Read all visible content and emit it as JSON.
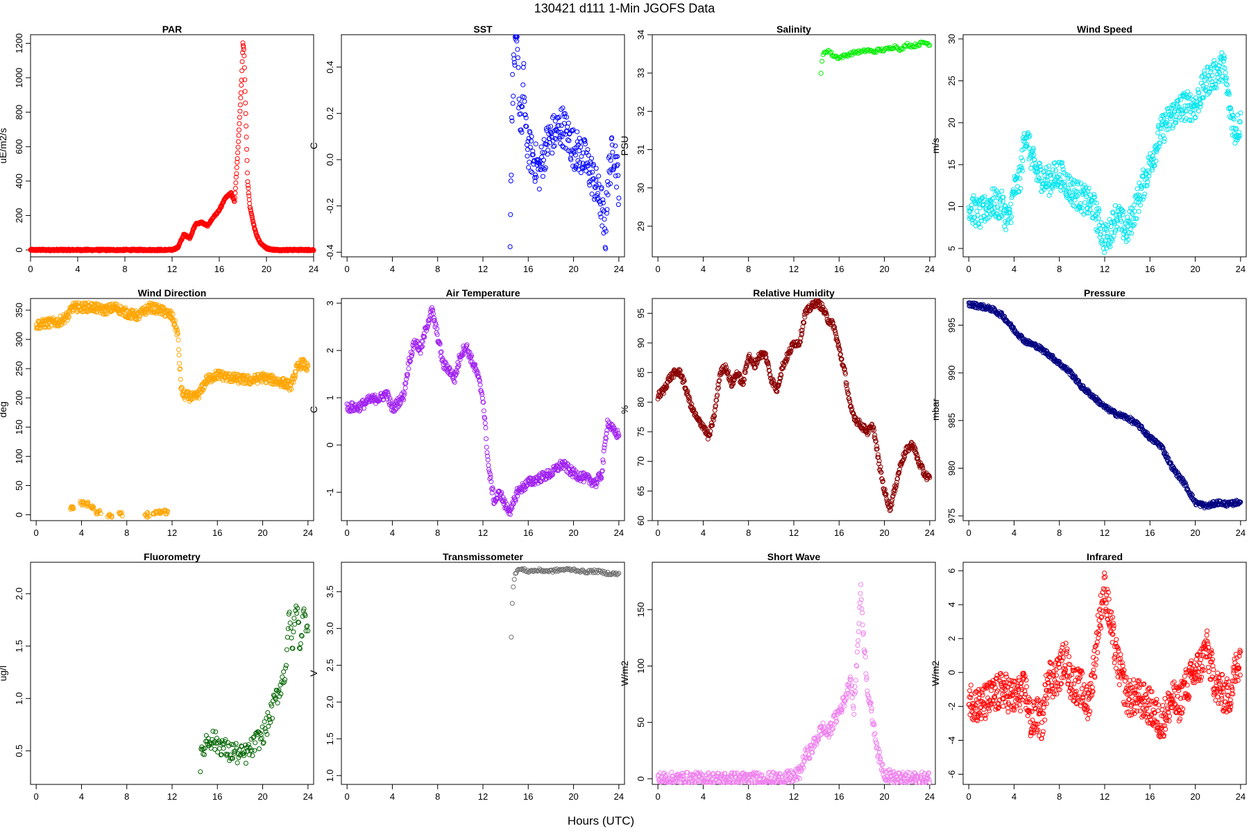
{
  "figure": {
    "title": "130421    d111    1-Min   JGOFS Data",
    "xlabel": "Hours (UTC)"
  },
  "chart_data": [
    {
      "type": "scatter",
      "title": "PAR",
      "ylabel": "uE/m2/s",
      "color": "#ff0000",
      "xlim": [
        0,
        24
      ],
      "ylim": [
        -40,
        1250
      ],
      "xticks": [
        0,
        4,
        8,
        12,
        16,
        20,
        24
      ],
      "yticks": [
        0,
        200,
        400,
        600,
        800,
        1000,
        1200
      ],
      "yticklabels": [
        "0",
        "200",
        "400",
        "600",
        "800",
        "1000",
        "1200"
      ],
      "x": [
        0,
        4,
        8,
        12,
        12.5,
        13,
        13.5,
        14,
        14.5,
        15,
        15.5,
        16,
        16.5,
        17,
        17.3,
        17.6,
        17.9,
        18,
        18.1,
        18.2,
        18.4,
        18.6,
        18.9,
        19.2,
        19.5,
        20,
        20.5,
        21,
        22,
        23,
        24
      ],
      "y": [
        0,
        0,
        0,
        0,
        15,
        90,
        70,
        150,
        160,
        140,
        190,
        230,
        300,
        330,
        280,
        600,
        1000,
        1200,
        1150,
        900,
        400,
        250,
        150,
        80,
        40,
        10,
        2,
        0,
        0,
        0,
        0
      ],
      "scatter": [
        5,
        12
      ]
    },
    {
      "type": "scatter",
      "title": "SST",
      "ylabel": "C",
      "color": "#0000ff",
      "xlim": [
        -0.5,
        24.5
      ],
      "ylim": [
        -0.42,
        0.54
      ],
      "xticks": [
        0,
        4,
        8,
        12,
        16,
        20,
        24
      ],
      "yticks": [
        -0.4,
        -0.2,
        0,
        0.2,
        0.4
      ],
      "yticklabels": [
        "-0.4",
        "-0.2",
        "0.0",
        "0.2",
        "0.4"
      ],
      "x": [
        14.4,
        14.6,
        14.8,
        15,
        15.2,
        15.4,
        15.6,
        15.8,
        16,
        16.5,
        17,
        17.5,
        18,
        18.5,
        19,
        19.5,
        20,
        20.5,
        21,
        21.5,
        22,
        22.5,
        22.8,
        23,
        23.3,
        23.6,
        24
      ],
      "y": [
        -0.3,
        0.3,
        0.45,
        0.5,
        0.25,
        0.15,
        0.35,
        0.1,
        0.05,
        0,
        -0.05,
        0.05,
        0.1,
        0.12,
        0.15,
        0.1,
        0.05,
        0.03,
        0,
        -0.05,
        -0.12,
        -0.2,
        -0.35,
        -0.1,
        0.0,
        0.05,
        -0.12
      ],
      "scatter": [
        0.09,
        9
      ]
    },
    {
      "type": "scatter",
      "title": "Salinity",
      "ylabel": "PSU",
      "color": "#00ee00",
      "xlim": [
        -0.5,
        24.5
      ],
      "ylim": [
        28.2,
        34.0
      ],
      "xticks": [
        0,
        4,
        8,
        12,
        16,
        20,
        24
      ],
      "yticks": [
        29,
        30,
        31,
        32,
        33,
        34
      ],
      "yticklabels": [
        "29",
        "30",
        "31",
        "32",
        "33",
        "34"
      ],
      "x": [
        14.4,
        14.5,
        14.6,
        14.8,
        15,
        15.5,
        16,
        16.5,
        17,
        17.5,
        18,
        18.5,
        19,
        19.5,
        20,
        20.5,
        21,
        21.5,
        22,
        22.5,
        23,
        23.5,
        24
      ],
      "y": [
        33,
        33.3,
        33.5,
        33.55,
        33.6,
        33.45,
        33.4,
        33.45,
        33.5,
        33.55,
        33.55,
        33.6,
        33.55,
        33.6,
        33.6,
        33.65,
        33.7,
        33.6,
        33.75,
        33.7,
        33.75,
        33.8,
        33.75
      ],
      "scatter": [
        0.04,
        3
      ]
    },
    {
      "type": "scatter",
      "title": "Wind Speed",
      "ylabel": "m/s",
      "color": "#00e5ee",
      "xlim": [
        -0.5,
        24.5
      ],
      "ylim": [
        4,
        30.5
      ],
      "xticks": [
        0,
        4,
        8,
        12,
        16,
        20,
        24
      ],
      "yticks": [
        5,
        10,
        15,
        20,
        25,
        30
      ],
      "yticklabels": [
        "5",
        "10",
        "15",
        "20",
        "25",
        "30"
      ],
      "x": [
        0,
        1,
        2,
        3,
        3.5,
        4,
        4.5,
        5,
        5.5,
        6,
        7,
        8,
        9,
        10,
        11,
        12,
        12.5,
        13,
        14,
        15,
        16,
        16.5,
        17,
        18,
        19,
        20,
        21,
        22,
        22.5,
        23,
        23.5,
        24
      ],
      "y": [
        10,
        9,
        10.5,
        10,
        8,
        12,
        13,
        19,
        16,
        14,
        13,
        14,
        12,
        11,
        10,
        6,
        7,
        9,
        7,
        11,
        15,
        17,
        19,
        21,
        22,
        22,
        25,
        26,
        27,
        22,
        19,
        20
      ],
      "scatter": [
        1.8,
        10
      ]
    },
    {
      "type": "scatter",
      "title": "Wind Direction",
      "ylabel": "deg",
      "color": "#ffa500",
      "xlim": [
        -0.5,
        24.5
      ],
      "ylim": [
        -10,
        370
      ],
      "xticks": [
        0,
        4,
        8,
        12,
        16,
        20,
        24
      ],
      "yticks": [
        0,
        50,
        100,
        150,
        200,
        250,
        300,
        350
      ],
      "yticklabels": [
        "0",
        "50",
        "100",
        "150",
        "200",
        "250",
        "300",
        "350"
      ],
      "x": [
        0,
        1,
        2,
        2.8,
        3.2,
        5,
        6,
        7,
        8,
        9,
        10,
        11,
        12,
        12.5,
        12.8,
        13,
        14,
        14.5,
        15,
        16,
        17,
        18,
        19,
        20,
        21,
        22,
        22.5,
        23,
        23.5,
        24
      ],
      "y": [
        325,
        328,
        330,
        340,
        355,
        355,
        350,
        355,
        345,
        340,
        355,
        350,
        340,
        310,
        215,
        205,
        200,
        210,
        230,
        240,
        235,
        232,
        230,
        235,
        230,
        225,
        220,
        250,
        260,
        250
      ],
      "scatter": [
        8,
        10
      ],
      "extra": [
        [
          3.2,
          10,
          4.0,
          20,
          4.5,
          18,
          5,
          12,
          5.5,
          5,
          6.5,
          0,
          7.5,
          2,
          9.8,
          0,
          10.5,
          2,
          11,
          3,
          11.5,
          5
        ],
        8,
        4
      ]
    },
    {
      "type": "scatter",
      "title": "Air Temperature",
      "ylabel": "C",
      "color": "#a020f0",
      "xlim": [
        -0.5,
        24.5
      ],
      "ylim": [
        -1.6,
        3.1
      ],
      "xticks": [
        0,
        4,
        8,
        12,
        16,
        20,
        24
      ],
      "yticks": [
        -1,
        0,
        1,
        2,
        3
      ],
      "yticklabels": [
        "-1",
        "0",
        "1",
        "2",
        "3"
      ],
      "x": [
        0,
        1,
        2,
        3,
        3.5,
        4,
        4.5,
        5,
        5.5,
        6,
        6.5,
        7,
        7.5,
        8,
        8.5,
        9,
        9.5,
        10,
        10.5,
        11,
        11.5,
        12,
        12.5,
        13,
        13.5,
        14,
        14.5,
        15,
        16,
        17,
        18,
        19,
        20,
        21,
        22,
        22.5,
        23,
        23.5,
        24
      ],
      "y": [
        0.8,
        0.8,
        0.95,
        1.0,
        1.1,
        0.75,
        0.9,
        1.05,
        1.8,
        2.2,
        2.0,
        2.5,
        2.85,
        2.3,
        1.7,
        1.6,
        1.4,
        1.9,
        2.1,
        1.8,
        1.5,
        1.0,
        -0.5,
        -1.2,
        -1.0,
        -1.3,
        -1.4,
        -1.0,
        -0.8,
        -0.7,
        -0.6,
        -0.4,
        -0.6,
        -0.7,
        -0.8,
        -0.6,
        0.5,
        0.3,
        0.2
      ],
      "scatter": [
        0.1,
        8
      ]
    },
    {
      "type": "scatter",
      "title": "Relative Humidity",
      "ylabel": "%",
      "color": "#8b0000",
      "xlim": [
        -0.5,
        24.5
      ],
      "ylim": [
        60,
        97.5
      ],
      "xticks": [
        0,
        4,
        8,
        12,
        16,
        20,
        24
      ],
      "yticks": [
        60,
        65,
        70,
        75,
        80,
        85,
        90,
        95
      ],
      "yticklabels": [
        "60",
        "65",
        "70",
        "75",
        "80",
        "85",
        "90",
        "95"
      ],
      "x": [
        0,
        0.5,
        1,
        1.5,
        2,
        2.5,
        3,
        3.5,
        4,
        4.5,
        5,
        5.5,
        6,
        6.5,
        7,
        7.5,
        8,
        8.5,
        9,
        9.5,
        10,
        10.5,
        11,
        11.5,
        12,
        12.5,
        13,
        13.5,
        14,
        14.5,
        15,
        15.5,
        16,
        16.5,
        17,
        17.5,
        18,
        18.5,
        19,
        19.5,
        20,
        20.5,
        21,
        21.5,
        22,
        22.5,
        23,
        23.5,
        24
      ],
      "y": [
        81,
        82,
        84,
        85,
        85,
        82,
        79,
        77,
        76,
        74,
        78,
        85,
        86,
        83,
        85,
        83,
        88,
        86,
        88,
        88,
        84,
        82,
        86,
        88,
        90,
        90,
        95,
        96,
        97,
        96,
        94,
        93,
        89,
        85,
        79,
        77,
        76,
        75,
        76,
        70,
        65,
        62,
        66,
        70,
        72,
        73,
        70,
        68,
        67
      ],
      "scatter": [
        0.6,
        9
      ]
    },
    {
      "type": "scatter",
      "title": "Pressure",
      "ylabel": "mbar",
      "color": "#000080",
      "xlim": [
        -0.5,
        24.5
      ],
      "ylim": [
        974.5,
        997.8
      ],
      "xticks": [
        0,
        4,
        8,
        12,
        16,
        20,
        24
      ],
      "yticks": [
        975,
        980,
        985,
        990,
        995
      ],
      "yticklabels": [
        "975",
        "980",
        "985",
        "990",
        "995"
      ],
      "x": [
        0,
        1,
        2,
        3,
        4,
        5,
        6,
        7,
        8,
        9,
        10,
        11,
        12,
        13,
        14,
        15,
        16,
        17,
        18,
        19,
        20,
        21,
        22,
        23,
        24
      ],
      "y": [
        997.2,
        997,
        996.7,
        996,
        994.5,
        993.3,
        992.8,
        992,
        991,
        990,
        988.5,
        987.5,
        986.4,
        985.7,
        985.3,
        984.5,
        983.2,
        982.3,
        980,
        978.5,
        976.4,
        976,
        976.4,
        976.2,
        976.5
      ],
      "scatter": [
        0.25,
        8
      ]
    },
    {
      "type": "scatter",
      "title": "Fluorometry",
      "ylabel": "ug/l",
      "color": "#006400",
      "xlim": [
        -0.5,
        24.5
      ],
      "ylim": [
        0.18,
        2.3
      ],
      "xticks": [
        0,
        4,
        8,
        12,
        16,
        20,
        24
      ],
      "yticks": [
        0.5,
        1.0,
        1.5,
        2.0
      ],
      "yticklabels": [
        "0.5",
        "1.0",
        "1.5",
        "2.0"
      ],
      "x": [
        14.5,
        15,
        15.5,
        16,
        16.5,
        17,
        17.5,
        18,
        18.5,
        19,
        19.5,
        20,
        20.5,
        21,
        21.5,
        22,
        22.3,
        22.6,
        23,
        23.3,
        23.6,
        24
      ],
      "y": [
        0.4,
        0.6,
        0.62,
        0.57,
        0.55,
        0.48,
        0.5,
        0.45,
        0.47,
        0.52,
        0.6,
        0.65,
        0.78,
        0.95,
        1.1,
        1.25,
        1.8,
        1.5,
        1.9,
        1.5,
        1.8,
        1.7
      ],
      "scatter": [
        0.1,
        5
      ]
    },
    {
      "type": "scatter",
      "title": "Transmissometer",
      "ylabel": "V",
      "color": "#707070",
      "xlim": [
        -0.5,
        24.5
      ],
      "ylim": [
        0.88,
        3.9
      ],
      "xticks": [
        0,
        4,
        8,
        12,
        16,
        20,
        24
      ],
      "yticks": [
        1.0,
        1.5,
        2.0,
        2.5,
        3.0,
        3.5
      ],
      "yticklabels": [
        "1.0",
        "1.5",
        "2.0",
        "2.5",
        "3.0",
        "3.5"
      ],
      "x": [
        14.5,
        14.6,
        14.7,
        14.8,
        15,
        15.5,
        16,
        17,
        18,
        19,
        20,
        21,
        22,
        23,
        24
      ],
      "y": [
        2.9,
        3.4,
        3.6,
        3.7,
        3.8,
        3.8,
        3.78,
        3.79,
        3.78,
        3.8,
        3.8,
        3.77,
        3.78,
        3.75,
        3.74
      ],
      "scatter": [
        0.02,
        3
      ]
    },
    {
      "type": "scatter",
      "title": "Short Wave",
      "ylabel": "W/m2",
      "color": "#ee82ee",
      "xlim": [
        -0.5,
        24.5
      ],
      "ylim": [
        -5,
        192
      ],
      "xticks": [
        0,
        4,
        8,
        12,
        16,
        20,
        24
      ],
      "yticks": [
        0,
        50,
        100,
        150
      ],
      "yticklabels": [
        "0",
        "50",
        "100",
        "150"
      ],
      "x": [
        0,
        4,
        8,
        11,
        12,
        12.5,
        13,
        13.5,
        14,
        14.5,
        15,
        15.5,
        16,
        16.5,
        17,
        17.3,
        17.6,
        17.9,
        18.2,
        18.5,
        19,
        19.5,
        20,
        21,
        22,
        23,
        24
      ],
      "y": [
        0,
        0,
        0,
        0,
        2,
        5,
        20,
        25,
        35,
        45,
        40,
        50,
        60,
        70,
        90,
        60,
        110,
        170,
        120,
        80,
        50,
        20,
        5,
        0,
        0,
        0,
        0
      ],
      "scatter": [
        6,
        8
      ]
    },
    {
      "type": "scatter",
      "title": "Infrared",
      "ylabel": "W/m2",
      "color": "#ff0000",
      "xlim": [
        -0.5,
        24.5
      ],
      "ylim": [
        -6.6,
        6.5
      ],
      "xticks": [
        0,
        4,
        8,
        12,
        16,
        20,
        24
      ],
      "yticks": [
        -6,
        -4,
        -2,
        0,
        2,
        4,
        6
      ],
      "yticklabels": [
        "-6",
        "-4",
        "-2",
        "0",
        "2",
        "4",
        "6"
      ],
      "x": [
        0,
        1,
        2,
        3,
        4,
        5,
        5.5,
        6,
        6.5,
        7,
        7.5,
        8,
        8.5,
        9,
        10,
        10.5,
        11,
        11.5,
        12,
        12.5,
        13,
        14,
        15,
        16,
        17,
        18,
        18.5,
        19,
        20,
        20.5,
        21,
        21.5,
        22,
        23,
        23.5,
        24
      ],
      "y": [
        -1.5,
        -2,
        -1.5,
        -1,
        -1.5,
        -1,
        -3,
        -2.5,
        -3,
        0,
        -0.5,
        0,
        1,
        -0.5,
        -1,
        -2,
        0,
        3,
        5,
        3,
        1,
        -1.5,
        -1.5,
        -2,
        -3,
        -1.5,
        -2,
        -1,
        0,
        0.5,
        1.5,
        0,
        -1,
        -1.5,
        0,
        1
      ],
      "scatter": [
        1.1,
        12
      ]
    }
  ]
}
